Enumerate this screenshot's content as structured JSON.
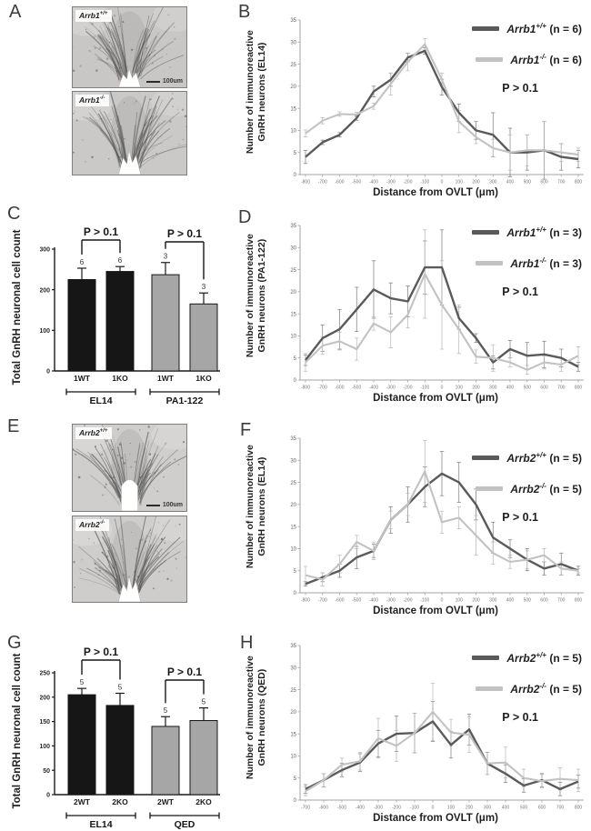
{
  "colors": {
    "wt_line": "#5a5a5a",
    "ko_line": "#c2c2c2",
    "black_bar": "#161616",
    "gray_bar": "#a6a6a6",
    "axis_gray": "#a3a3a3",
    "axis_black": "#1a1a1a"
  },
  "panels": {
    "A": {
      "letter": "A",
      "images": [
        {
          "gene": "Arrb1",
          "sup": "+/+",
          "scale": "100um"
        },
        {
          "gene": "Arrb1",
          "sup": "-/-"
        }
      ]
    },
    "B": {
      "letter": "B"
    },
    "C": {
      "letter": "C"
    },
    "D": {
      "letter": "D"
    },
    "E": {
      "letter": "E",
      "images": [
        {
          "gene": "Arrb2",
          "sup": "+/+",
          "scale": "100um"
        },
        {
          "gene": "Arrb2",
          "sup": "-/-"
        }
      ]
    },
    "F": {
      "letter": "F"
    },
    "G": {
      "letter": "G"
    },
    "H": {
      "letter": "H"
    }
  },
  "chart_data": [
    {
      "id": "B",
      "type": "line",
      "ylabel_lines": [
        "Number of immunoreactive",
        "GnRH neurons (EL14)"
      ],
      "xlabel": "Distance from OVLT (μm)",
      "ylim": [
        0,
        35
      ],
      "ytick_step": 5,
      "grid": false,
      "legend_position": "top-right",
      "x": [
        -800,
        -700,
        -600,
        -500,
        -400,
        -300,
        -200,
        -100,
        0,
        100,
        200,
        300,
        400,
        500,
        600,
        700,
        800
      ],
      "series": [
        {
          "gene": "Arrb1",
          "sup": "+/+",
          "rest": "(n = 6)",
          "color": "#5a5a5a",
          "err_color": "#7a7a7a",
          "values": [
            4,
            7.3,
            9,
            12.8,
            18.8,
            21.5,
            26.5,
            28,
            19.8,
            14,
            10,
            9,
            5,
            5,
            5.5,
            4,
            3.5
          ],
          "err": [
            1.5,
            0.5,
            0.5,
            0.5,
            1.2,
            1.5,
            1,
            0.7,
            1.8,
            2,
            2,
            5,
            5.5,
            4,
            6.5,
            3,
            2
          ]
        },
        {
          "gene": "Arrb1",
          "sup": "-/-",
          "rest": "(n = 6)",
          "color": "#c2c2c2",
          "err_color": "#b5b5b5",
          "values": [
            9.3,
            12.2,
            13.7,
            13.6,
            15.5,
            20.5,
            25.5,
            29.5,
            21.5,
            12,
            8.5,
            6,
            5,
            5.5,
            5.5,
            5,
            4.5
          ],
          "err": [
            0.8,
            0.7,
            0.5,
            0.5,
            0.7,
            2.5,
            2,
            1.3,
            1.5,
            2.5,
            1.5,
            2,
            4,
            3.5,
            6.5,
            2,
            1.5
          ]
        }
      ],
      "p_label": "P > 0.1",
      "legend_top": 22
    },
    {
      "id": "C",
      "type": "bar",
      "ylabel": "Total GnRH neuronal cell count",
      "ymax": 300,
      "ytick_step": 100,
      "grid": false,
      "bars": [
        {
          "label": "1WT",
          "value": 225,
          "err": 28,
          "n": "6",
          "fill": "#161616"
        },
        {
          "label": "1KO",
          "value": 245,
          "err": 12,
          "n": "6",
          "fill": "#161616"
        },
        {
          "label": "1WT",
          "value": 237,
          "err": 30,
          "n": "3",
          "fill": "#a6a6a6"
        },
        {
          "label": "1KO",
          "value": 165,
          "err": 27,
          "n": "3",
          "fill": "#a6a6a6"
        }
      ],
      "groups": [
        {
          "label": "EL14",
          "span": [
            0,
            1
          ]
        },
        {
          "label": "PA1-122",
          "span": [
            2,
            3
          ]
        }
      ],
      "brackets": [
        {
          "pair": [
            0,
            1
          ],
          "text": "P > 0.1",
          "y": 30
        },
        {
          "pair": [
            2,
            3
          ],
          "text": "P > 0.1",
          "y": 32
        }
      ]
    },
    {
      "id": "D",
      "type": "line",
      "ylabel_lines": [
        "Number of immunoreactive",
        "GnRH neurons (PA1-122)"
      ],
      "xlabel": "Distance from OVLT (μm)",
      "ylim": [
        0,
        35
      ],
      "ytick_step": 5,
      "grid": false,
      "legend_position": "top-right",
      "x": [
        -800,
        -700,
        -600,
        -500,
        -400,
        -300,
        -200,
        -100,
        0,
        100,
        200,
        300,
        400,
        500,
        600,
        700,
        800
      ],
      "series": [
        {
          "gene": "Arrb1",
          "sup": "+/+",
          "rest": "(n = 3)",
          "color": "#5a5a5a",
          "err_color": "#7a7a7a",
          "values": [
            4.5,
            9.5,
            11.5,
            16,
            20.5,
            18.5,
            17.8,
            25.5,
            25.5,
            14,
            9.5,
            4,
            7,
            5.5,
            5.8,
            5,
            3
          ],
          "err": [
            1.2,
            3,
            4.5,
            5,
            6.5,
            3.5,
            3.5,
            6,
            8.5,
            2.5,
            1,
            1.5,
            2,
            3,
            3,
            2,
            1
          ]
        },
        {
          "gene": "Arrb1",
          "sup": "-/-",
          "rest": "(n = 3)",
          "color": "#c2c2c2",
          "err_color": "#b5b5b5",
          "values": [
            4,
            7.8,
            8.8,
            7,
            12.8,
            10.8,
            14.8,
            24,
            17,
            11.5,
            5.3,
            5,
            4,
            2.3,
            4,
            3.5,
            5.5
          ],
          "err": [
            2,
            2,
            2,
            2.5,
            1.5,
            3.5,
            3,
            10,
            10,
            5.5,
            1.5,
            3,
            1,
            1,
            1.5,
            1.5,
            2
          ]
        }
      ],
      "p_label": "P > 0.1",
      "legend_top": 22
    },
    {
      "id": "F",
      "type": "line",
      "ylabel_lines": [
        "Number of immunoreactive",
        "GnRH neurons (EL14)"
      ],
      "xlabel": "Distance from OVLT (μm)",
      "ylim": [
        0,
        35
      ],
      "ytick_step": 5,
      "grid": false,
      "legend_position": "top-right",
      "x": [
        -800,
        -700,
        -600,
        -500,
        -400,
        -300,
        -200,
        -100,
        0,
        100,
        200,
        300,
        400,
        500,
        600,
        700,
        800
      ],
      "series": [
        {
          "gene": "Arrb2",
          "sup": "+/+",
          "rest": "(n = 5)",
          "color": "#5a5a5a",
          "err_color": "#7a7a7a",
          "values": [
            2,
            3.5,
            5,
            8,
            9.5,
            16.5,
            20,
            24,
            27,
            25,
            20,
            12.5,
            10,
            7.5,
            5.5,
            6.5,
            5
          ],
          "err": [
            0.5,
            1,
            1.5,
            2.5,
            1.5,
            3,
            4,
            4.5,
            5,
            4.5,
            3.5,
            3.5,
            2,
            2.5,
            1.5,
            2.5,
            1
          ]
        },
        {
          "gene": "Arrb2",
          "sup": "-/-",
          "rest": "(n = 5)",
          "color": "#c2c2c2",
          "err_color": "#b5b5b5",
          "values": [
            4,
            3,
            6.5,
            11.5,
            9.5,
            16.5,
            20,
            27.5,
            16,
            17,
            13,
            9,
            7,
            7.5,
            8.5,
            5.5,
            5
          ],
          "err": [
            2,
            1.5,
            2,
            1.5,
            2,
            2,
            2.5,
            7,
            2.5,
            2.5,
            4.5,
            2.5,
            1.5,
            2,
            1.5,
            1.5,
            0.5
          ]
        }
      ],
      "p_label": "P > 0.1",
      "legend_top": 38
    },
    {
      "id": "G",
      "type": "bar",
      "ylabel": "Total GnRH neuronal cell count",
      "ymax": 250,
      "ytick_step": 50,
      "grid": false,
      "bars": [
        {
          "label": "2WT",
          "value": 205,
          "err": 13,
          "n": "5",
          "fill": "#161616"
        },
        {
          "label": "2KO",
          "value": 183,
          "err": 25,
          "n": "5",
          "fill": "#161616"
        },
        {
          "label": "2WT",
          "value": 140,
          "err": 20,
          "n": "5",
          "fill": "#a6a6a6"
        },
        {
          "label": "2KO",
          "value": 152,
          "err": 26,
          "n": "5",
          "fill": "#a6a6a6"
        }
      ],
      "groups": [
        {
          "label": "EL14",
          "span": [
            0,
            1
          ]
        },
        {
          "label": "QED",
          "span": [
            2,
            3
          ]
        }
      ],
      "brackets": [
        {
          "pair": [
            0,
            1
          ],
          "text": "P > 0.1",
          "y": 26
        },
        {
          "pair": [
            2,
            3
          ],
          "text": "P > 0.1",
          "y": 48
        }
      ]
    },
    {
      "id": "H",
      "type": "line",
      "ylabel_lines": [
        "Number of immunoreactive",
        "GnRH neurons (QED)"
      ],
      "xlabel": "Distance from OVLT (μm)",
      "ylim": [
        0,
        35
      ],
      "ytick_step": 5,
      "grid": false,
      "legend_position": "top-right",
      "x": [
        -700,
        -600,
        -500,
        -400,
        -300,
        -200,
        -100,
        0,
        100,
        200,
        300,
        400,
        500,
        600,
        700,
        800
      ],
      "series": [
        {
          "gene": "Arrb2",
          "sup": "+/+",
          "rest": "(n = 5)",
          "color": "#5a5a5a",
          "err_color": "#7a7a7a",
          "values": [
            2.5,
            4.5,
            6.8,
            8.5,
            12.8,
            15,
            15.2,
            17.8,
            12.5,
            16,
            8.3,
            6,
            3.3,
            4.5,
            2.5,
            4.2
          ],
          "err": [
            1,
            1.5,
            1.5,
            2,
            3,
            4,
            4.5,
            4.5,
            3,
            3.5,
            2.5,
            2,
            1.5,
            1.5,
            1.5,
            1.5
          ]
        },
        {
          "gene": "Arrb2",
          "sup": "-/-",
          "rest": "(n = 5)",
          "color": "#c2c2c2",
          "err_color": "#b5b5b5",
          "values": [
            2,
            4.5,
            8,
            8.8,
            14,
            12.3,
            15.2,
            20,
            15.3,
            14.8,
            8.3,
            8.5,
            5,
            4.3,
            4.8,
            4.5
          ],
          "err": [
            1,
            1.5,
            1.5,
            2,
            4.5,
            3.5,
            4.5,
            6.5,
            3,
            4,
            2.5,
            3.5,
            2,
            1.5,
            2.5,
            2.5
          ]
        }
      ],
      "p_label": "P > 0.1",
      "legend_top": 26
    }
  ]
}
